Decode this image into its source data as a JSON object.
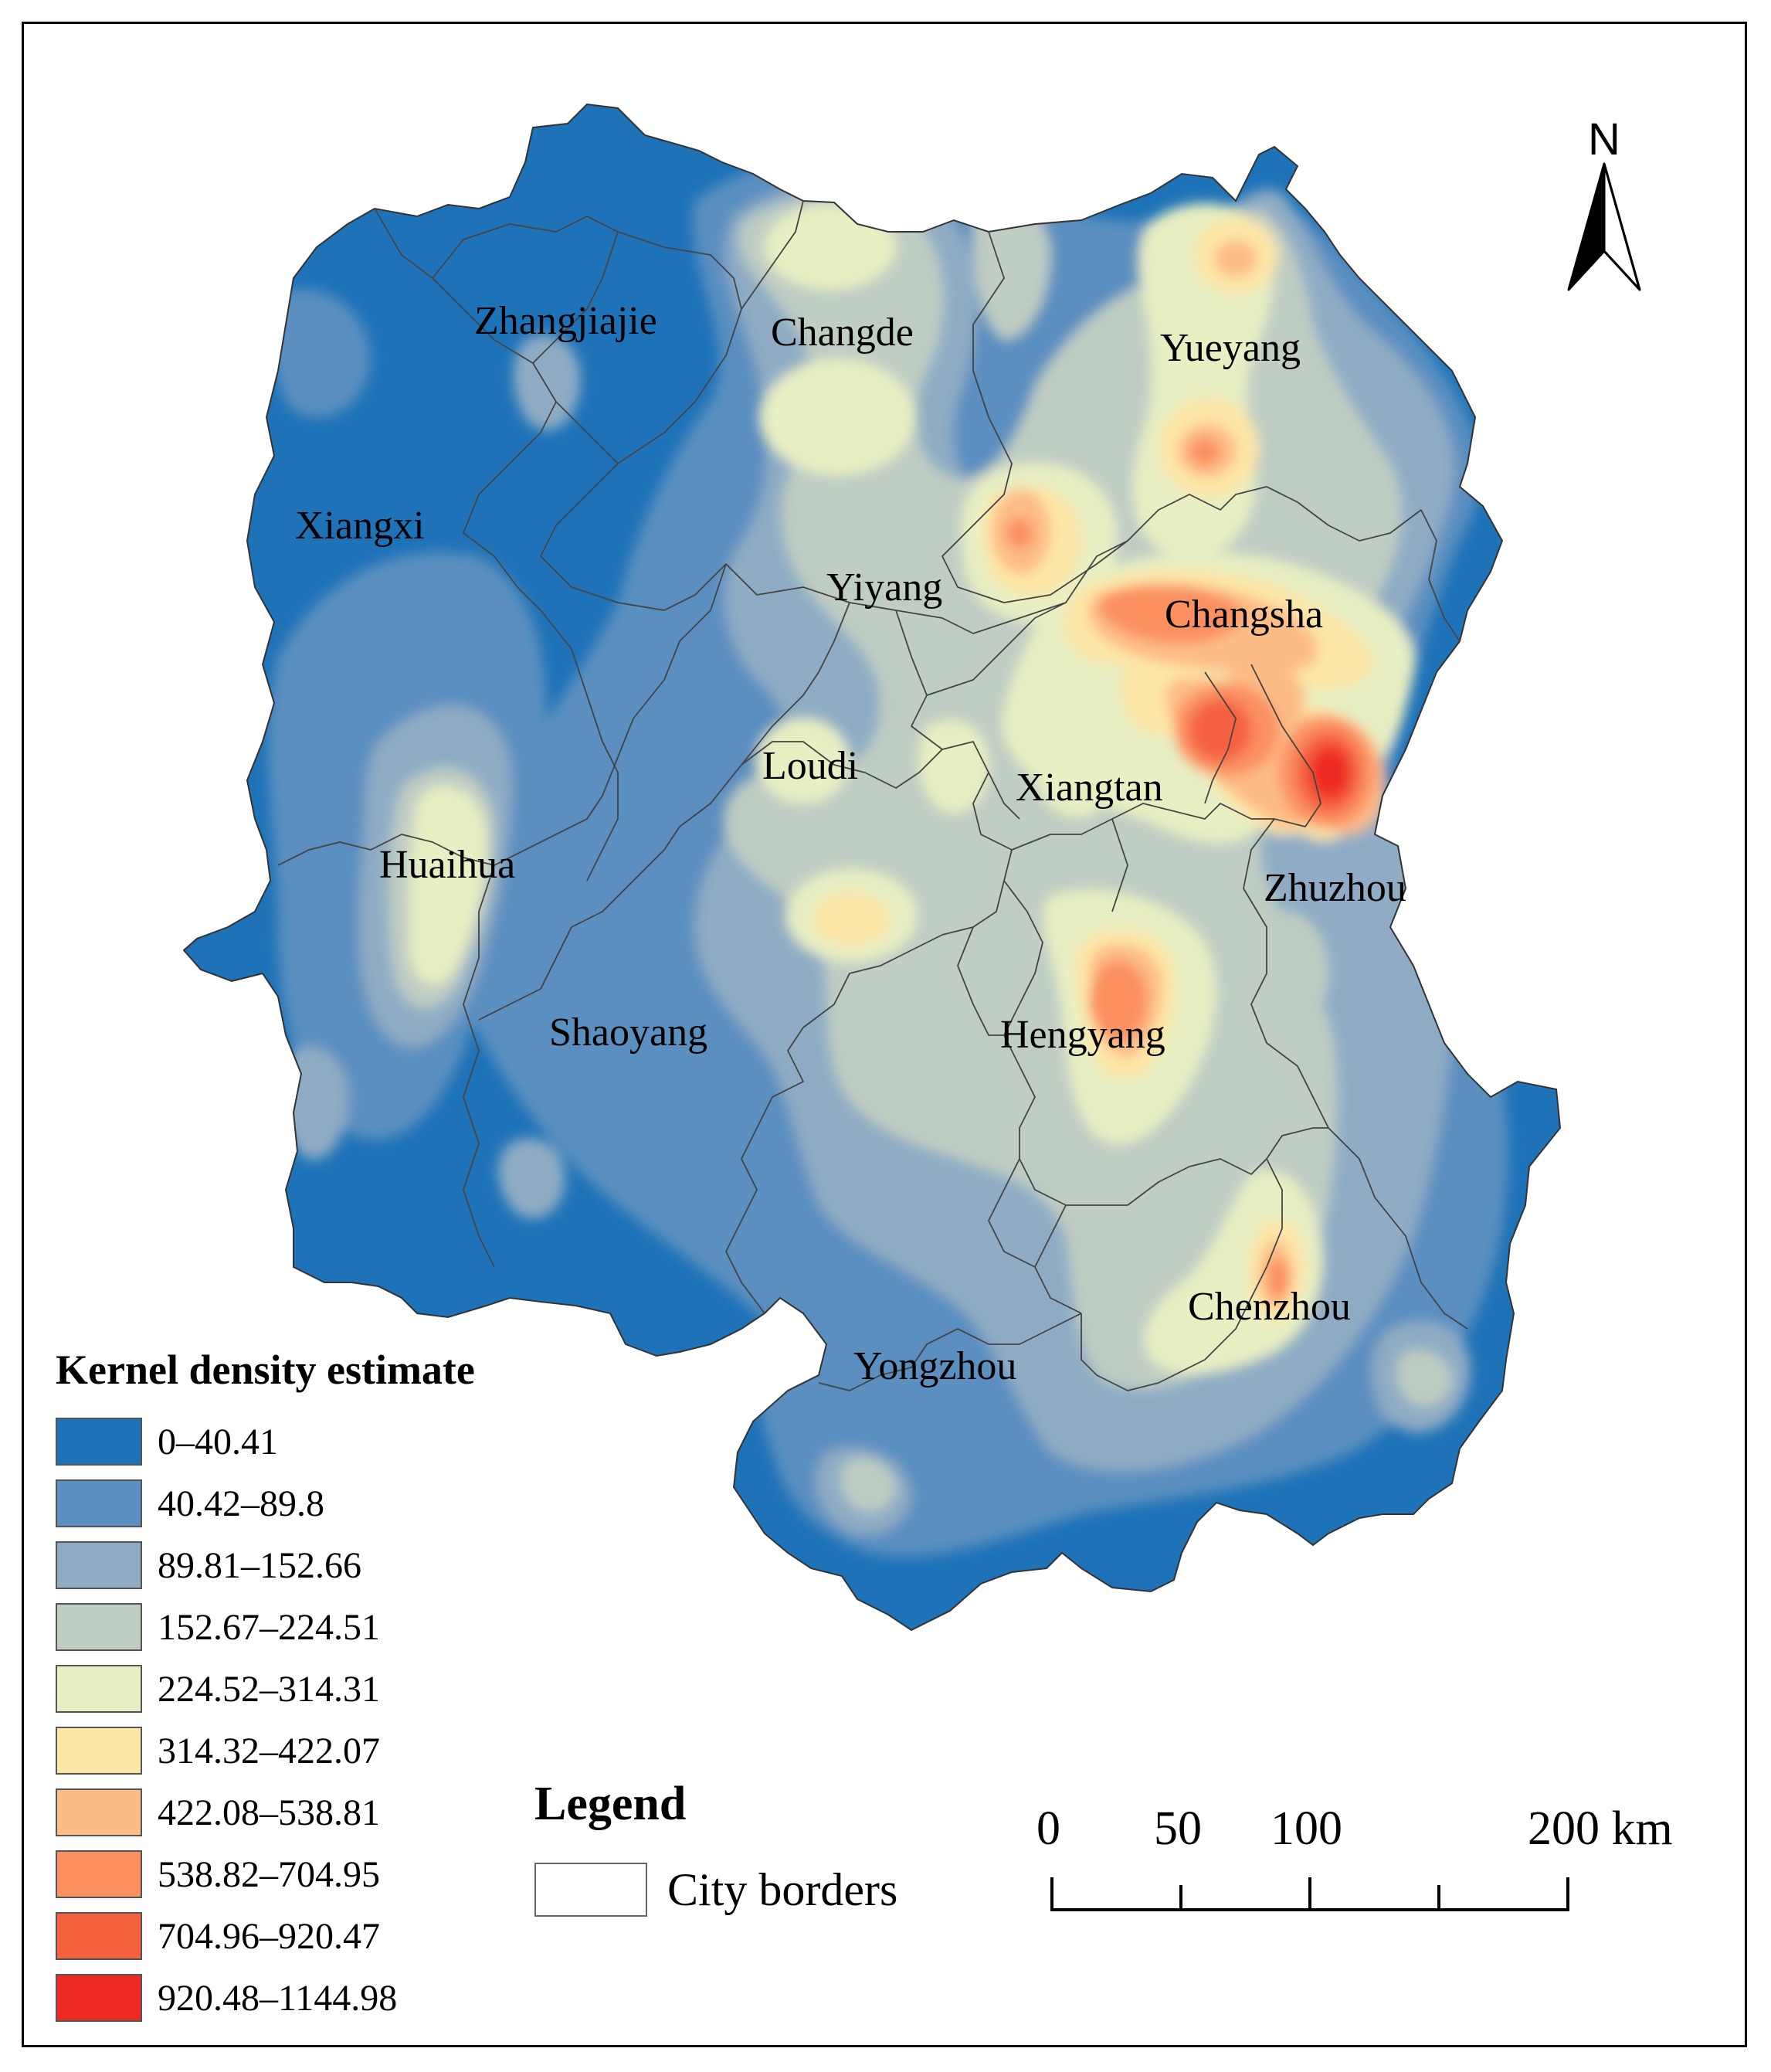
{
  "map": {
    "north_arrow": {
      "label": "N",
      "icon": "north-arrow-icon"
    },
    "cities": [
      {
        "name": "Zhangjiajie"
      },
      {
        "name": "Changde"
      },
      {
        "name": "Yueyang"
      },
      {
        "name": "Xiangxi"
      },
      {
        "name": "Yiyang"
      },
      {
        "name": "Changsha"
      },
      {
        "name": "Loudi"
      },
      {
        "name": "Xiangtan"
      },
      {
        "name": "Huaihua"
      },
      {
        "name": "Zhuzhou"
      },
      {
        "name": "Shaoyang"
      },
      {
        "name": "Hengyang"
      },
      {
        "name": "Chenzhou"
      },
      {
        "name": "Yongzhou"
      }
    ]
  },
  "kde_legend": {
    "title": "Kernel density estimate",
    "classes": [
      {
        "label": "0–40.41",
        "color": "#1e73b8"
      },
      {
        "label": "40.42–89.8",
        "color": "#5a8fc0"
      },
      {
        "label": "89.81–152.66",
        "color": "#8facc4"
      },
      {
        "label": "152.67–224.51",
        "color": "#bfcdc3"
      },
      {
        "label": "224.52–314.31",
        "color": "#e8efc3"
      },
      {
        "label": "314.32–422.07",
        "color": "#fde7a8"
      },
      {
        "label": "422.08–538.81",
        "color": "#fdbc86"
      },
      {
        "label": "538.82–704.95",
        "color": "#fb8f60"
      },
      {
        "label": "704.96–920.47",
        "color": "#f5603f"
      },
      {
        "label": "920.48–1144.98",
        "color": "#ee2a22"
      }
    ]
  },
  "legend": {
    "title": "Legend",
    "city_borders_label": "City borders"
  },
  "scale_bar": {
    "labels": [
      "0",
      "50",
      "100",
      "200 km"
    ]
  }
}
